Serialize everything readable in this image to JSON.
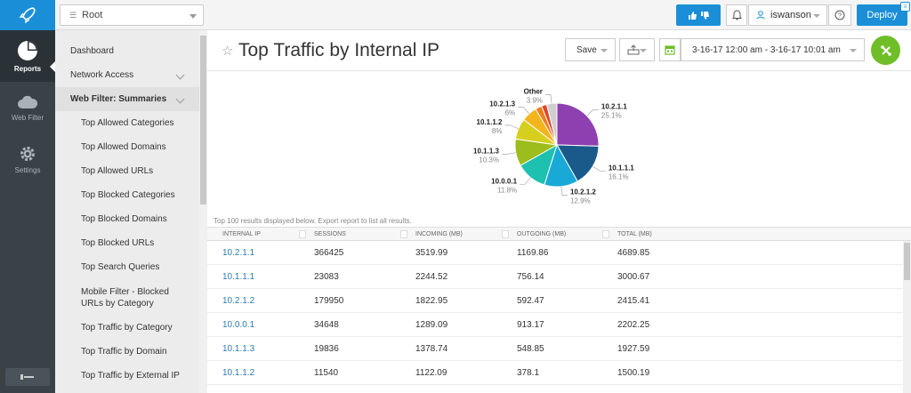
{
  "rail": {
    "items": [
      {
        "label": "Reports",
        "icon": "pie-chart-icon",
        "active": true
      },
      {
        "label": "Web Filter",
        "icon": "cloud-icon",
        "active": false
      },
      {
        "label": "Settings",
        "icon": "gear-icon",
        "active": false
      }
    ]
  },
  "topbar": {
    "root_label": "Root",
    "user": "iswanson",
    "deploy_label": "Deploy"
  },
  "subnav": {
    "items": [
      {
        "label": "Dashboard",
        "type": "item"
      },
      {
        "label": "Network Access",
        "type": "item",
        "chevron": true
      },
      {
        "label": "Web Filter: Summaries",
        "type": "section",
        "chevron": true
      },
      {
        "label": "Top Allowed Categories",
        "type": "child"
      },
      {
        "label": "Top Allowed Domains",
        "type": "child"
      },
      {
        "label": "Top Allowed URLs",
        "type": "child"
      },
      {
        "label": "Top Blocked Categories",
        "type": "child"
      },
      {
        "label": "Top Blocked Domains",
        "type": "child"
      },
      {
        "label": "Top Blocked URLs",
        "type": "child"
      },
      {
        "label": "Top Search Queries",
        "type": "child"
      },
      {
        "label": "Mobile Filter - Blocked URLs by Category",
        "type": "child-tall"
      },
      {
        "label": "Top Traffic by Category",
        "type": "child"
      },
      {
        "label": "Top Traffic by Domain",
        "type": "child"
      },
      {
        "label": "Top Traffic by External IP",
        "type": "child"
      }
    ]
  },
  "main": {
    "title": "Top Traffic by Internal IP",
    "save_label": "Save",
    "date_range": "3-16-17 12:00 am - 3-16-17 10:01 am",
    "note": "Top 100 results displayed below. Export report to list all results."
  },
  "chart_data": {
    "type": "pie",
    "slices": [
      {
        "label": "10.2.1.1",
        "pct_label": "25.1%",
        "value": 25.1,
        "color": "#8e3fb0"
      },
      {
        "label": "10.1.1.1",
        "pct_label": "16.1%",
        "value": 16.1,
        "color": "#1a5a8a"
      },
      {
        "label": "10.2.1.2",
        "pct_label": "12.9%",
        "value": 12.9,
        "color": "#19a9d6"
      },
      {
        "label": "10.0.0.1",
        "pct_label": "11.8%",
        "value": 11.8,
        "color": "#1ec0b0"
      },
      {
        "label": "10.1.1.3",
        "pct_label": "10.3%",
        "value": 10.3,
        "color": "#9cbd1c"
      },
      {
        "label": "10.1.1.2",
        "pct_label": "8%",
        "value": 8.0,
        "color": "#d7cf1d"
      },
      {
        "label": "10.2.1.3",
        "pct_label": "6%",
        "value": 6.0,
        "color": "#f4b41c"
      },
      {
        "label": "",
        "pct_label": "",
        "value": 2.5,
        "color": "#f07f1c"
      },
      {
        "label": "",
        "pct_label": "",
        "value": 2.0,
        "color": "#e0452a"
      },
      {
        "label": "Other",
        "pct_label": "3.9%",
        "value": 3.9,
        "color": "#cfcfcf"
      }
    ]
  },
  "table": {
    "columns": [
      "INTERNAL IP",
      "SESSIONS",
      "INCOMING (MB)",
      "OUTGOING (MB)",
      "TOTAL (MB)"
    ],
    "rows": [
      [
        "10.2.1.1",
        "366425",
        "3519.99",
        "1169.86",
        "4689.85"
      ],
      [
        "10.1.1.1",
        "23083",
        "2244.52",
        "756.14",
        "3000.67"
      ],
      [
        "10.2.1.2",
        "179950",
        "1822.95",
        "592.47",
        "2415.41"
      ],
      [
        "10.0.0.1",
        "34648",
        "1289.09",
        "913.17",
        "2202.25"
      ],
      [
        "10.1.1.3",
        "19836",
        "1378.74",
        "548.85",
        "1927.59"
      ],
      [
        "10.1.1.2",
        "11540",
        "1122.09",
        "378.1",
        "1500.19"
      ]
    ]
  }
}
